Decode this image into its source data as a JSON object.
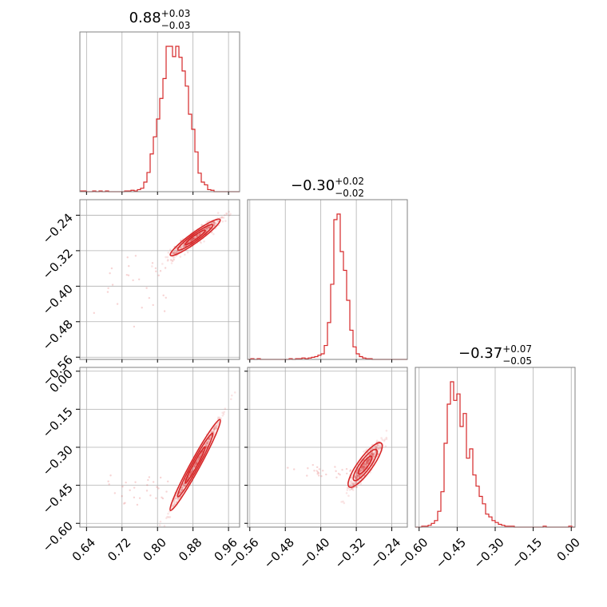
{
  "colors": {
    "accent": "#d62728",
    "grid": "#b0b0b0",
    "frame": "#808080"
  },
  "chart_data": {
    "type": "corner",
    "parameters": [
      {
        "name": "",
        "median": 0.88,
        "upper": "+0.03",
        "lower": "−0.03",
        "median_text": "0.88",
        "range": [
          0.625,
          0.985
        ],
        "ticks": [
          0.64,
          0.72,
          0.8,
          0.88,
          0.96
        ],
        "tick_labels": [
          "0.64",
          "0.72",
          "0.80",
          "0.88",
          "0.96"
        ]
      },
      {
        "name": "",
        "median": -0.3,
        "upper": "+0.02",
        "lower": "−0.02",
        "median_text": "−0.30",
        "range": [
          -0.565,
          -0.205
        ],
        "ticks": [
          -0.56,
          -0.48,
          -0.4,
          -0.32,
          -0.24
        ],
        "tick_labels": [
          "−0.56",
          "−0.48",
          "−0.40",
          "−0.32",
          "−0.24"
        ]
      },
      {
        "name": "",
        "median": -0.37,
        "upper": "+0.07",
        "lower": "−0.05",
        "median_text": "−0.37",
        "range": [
          -0.615,
          0.015
        ],
        "ticks": [
          -0.6,
          -0.45,
          -0.3,
          -0.15,
          0.0
        ],
        "tick_labels": [
          "−0.60",
          "−0.45",
          "−0.30",
          "−0.15",
          "0.00"
        ]
      }
    ],
    "histograms": [
      {
        "param": 0,
        "bin_start": 0.625,
        "bin_width": 0.0072,
        "counts": [
          1,
          1,
          0,
          0,
          1,
          0,
          1,
          0,
          1,
          0,
          0,
          0,
          0,
          0,
          1,
          1,
          2,
          1,
          3,
          5,
          14,
          28,
          55,
          80,
          106,
          136,
          165,
          212,
          212,
          197,
          212,
          196,
          176,
          154,
          113,
          91,
          58,
          27,
          14,
          10,
          3,
          2,
          0,
          0,
          0,
          0,
          0,
          0,
          0,
          0
        ]
      },
      {
        "param": 1,
        "bin_start": -0.565,
        "bin_width": 0.0072,
        "counts": [
          0,
          1,
          0,
          1,
          0,
          0,
          0,
          0,
          0,
          0,
          0,
          0,
          0,
          1,
          0,
          1,
          1,
          2,
          1,
          2,
          3,
          4,
          6,
          8,
          20,
          53,
          108,
          201,
          209,
          155,
          128,
          85,
          42,
          18,
          8,
          4,
          2,
          1,
          1,
          0,
          0,
          0,
          0,
          0,
          0,
          0,
          0,
          0,
          0,
          0
        ]
      },
      {
        "param": 2,
        "bin_start": -0.615,
        "bin_width": 0.0126,
        "counts": [
          0,
          0,
          1,
          1,
          2,
          4,
          7,
          17,
          38,
          90,
          132,
          156,
          136,
          143,
          108,
          122,
          74,
          84,
          56,
          44,
          33,
          25,
          14,
          11,
          7,
          5,
          3,
          2,
          1,
          1,
          1,
          0,
          0,
          0,
          0,
          0,
          0,
          0,
          0,
          0,
          1,
          0,
          0,
          0,
          0,
          0,
          0,
          0,
          1,
          0
        ]
      }
    ],
    "pairs": [
      {
        "x_param": 0,
        "y_param": 1
      },
      {
        "x_param": 0,
        "y_param": 2
      },
      {
        "x_param": 1,
        "y_param": 2
      }
    ],
    "grid": true
  }
}
